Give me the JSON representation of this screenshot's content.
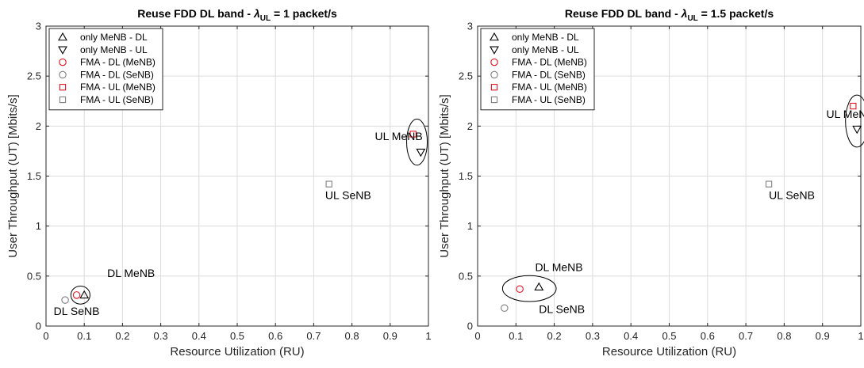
{
  "chart_data": [
    {
      "type": "scatter",
      "title": {
        "prefix": "Reuse FDD DL band  - ",
        "lambda": "λ",
        "sub": "UL",
        "suffix": " = 1 packet/s"
      },
      "xlabel": "Resource Utilization (RU)",
      "ylabel": "User Throughput (UT) [Mbits/s]",
      "xlim": [
        0,
        1
      ],
      "ylim": [
        0,
        3
      ],
      "xticks": [
        0,
        0.1,
        0.2,
        0.3,
        0.4,
        0.5,
        0.6,
        0.7,
        0.8,
        0.9,
        1
      ],
      "yticks": [
        0,
        0.5,
        1,
        1.5,
        2,
        2.5,
        3
      ],
      "grid": true,
      "legend_position": "top-left",
      "series": [
        {
          "name": "only MeNB - DL",
          "marker": "triangle-up",
          "color": "#000000",
          "points": [
            [
              0.1,
              0.31
            ]
          ]
        },
        {
          "name": "only MeNB - UL",
          "marker": "triangle-down",
          "color": "#000000",
          "points": [
            [
              0.98,
              1.74
            ]
          ]
        },
        {
          "name": "FMA - DL (MeNB)",
          "marker": "circle",
          "color": "#e8141e",
          "points": [
            [
              0.08,
              0.31
            ]
          ]
        },
        {
          "name": "FMA - DL (SeNB)",
          "marker": "circle",
          "color": "#808080",
          "points": [
            [
              0.05,
              0.26
            ]
          ]
        },
        {
          "name": "FMA - UL (MeNB)",
          "marker": "square",
          "color": "#e8141e",
          "points": [
            [
              0.96,
              1.92
            ]
          ]
        },
        {
          "name": "FMA - UL (SeNB)",
          "marker": "square",
          "color": "#808080",
          "points": [
            [
              0.74,
              1.42
            ]
          ]
        }
      ],
      "annotations": [
        {
          "text": "DL MeNB",
          "x": 0.16,
          "y": 0.49
        },
        {
          "text": "DL SeNB",
          "x": 0.02,
          "y": 0.11
        },
        {
          "text": "UL MeNB",
          "x": 0.86,
          "y": 1.86
        },
        {
          "text": "UL SeNB",
          "x": 0.73,
          "y": 1.27
        }
      ],
      "ellipses": [
        {
          "cx": 0.09,
          "cy": 0.31,
          "rx": 0.025,
          "ry": 0.09
        },
        {
          "cx": 0.97,
          "cy": 1.84,
          "rx": 0.027,
          "ry": 0.23
        }
      ]
    },
    {
      "type": "scatter",
      "title": {
        "prefix": "Reuse FDD DL band - ",
        "lambda": "λ",
        "sub": "UL",
        "suffix": " = 1.5 packet/s"
      },
      "xlabel": "Resource Utilization (RU)",
      "ylabel": "User Throughput (UT) [Mbits/s]",
      "xlim": [
        0,
        1
      ],
      "ylim": [
        0,
        3
      ],
      "xticks": [
        0,
        0.1,
        0.2,
        0.3,
        0.4,
        0.5,
        0.6,
        0.7,
        0.8,
        0.9,
        1
      ],
      "yticks": [
        0,
        0.5,
        1,
        1.5,
        2,
        2.5,
        3
      ],
      "grid": true,
      "legend_position": "top-left",
      "series": [
        {
          "name": "only MeNB - DL",
          "marker": "triangle-up",
          "color": "#000000",
          "points": [
            [
              0.16,
              0.39
            ]
          ]
        },
        {
          "name": "only MeNB - UL",
          "marker": "triangle-down",
          "color": "#000000",
          "points": [
            [
              0.99,
              1.97
            ]
          ]
        },
        {
          "name": "FMA - DL (MeNB)",
          "marker": "circle",
          "color": "#e8141e",
          "points": [
            [
              0.11,
              0.37
            ]
          ]
        },
        {
          "name": "FMA - DL (SeNB)",
          "marker": "circle",
          "color": "#808080",
          "points": [
            [
              0.07,
              0.18
            ]
          ]
        },
        {
          "name": "FMA - UL (MeNB)",
          "marker": "square",
          "color": "#e8141e",
          "points": [
            [
              0.98,
              2.2
            ]
          ]
        },
        {
          "name": "FMA - UL (SeNB)",
          "marker": "square",
          "color": "#808080",
          "points": [
            [
              0.76,
              1.42
            ]
          ]
        }
      ],
      "annotations": [
        {
          "text": "DL MeNB",
          "x": 0.15,
          "y": 0.55
        },
        {
          "text": "DL SeNB",
          "x": 0.16,
          "y": 0.13
        },
        {
          "text": "UL MeNB",
          "x": 0.91,
          "y": 2.08
        },
        {
          "text": "UL SeNB",
          "x": 0.76,
          "y": 1.27
        }
      ],
      "ellipses": [
        {
          "cx": 0.135,
          "cy": 0.375,
          "rx": 0.07,
          "ry": 0.13
        },
        {
          "cx": 0.99,
          "cy": 2.05,
          "rx": 0.03,
          "ry": 0.26
        }
      ]
    }
  ]
}
